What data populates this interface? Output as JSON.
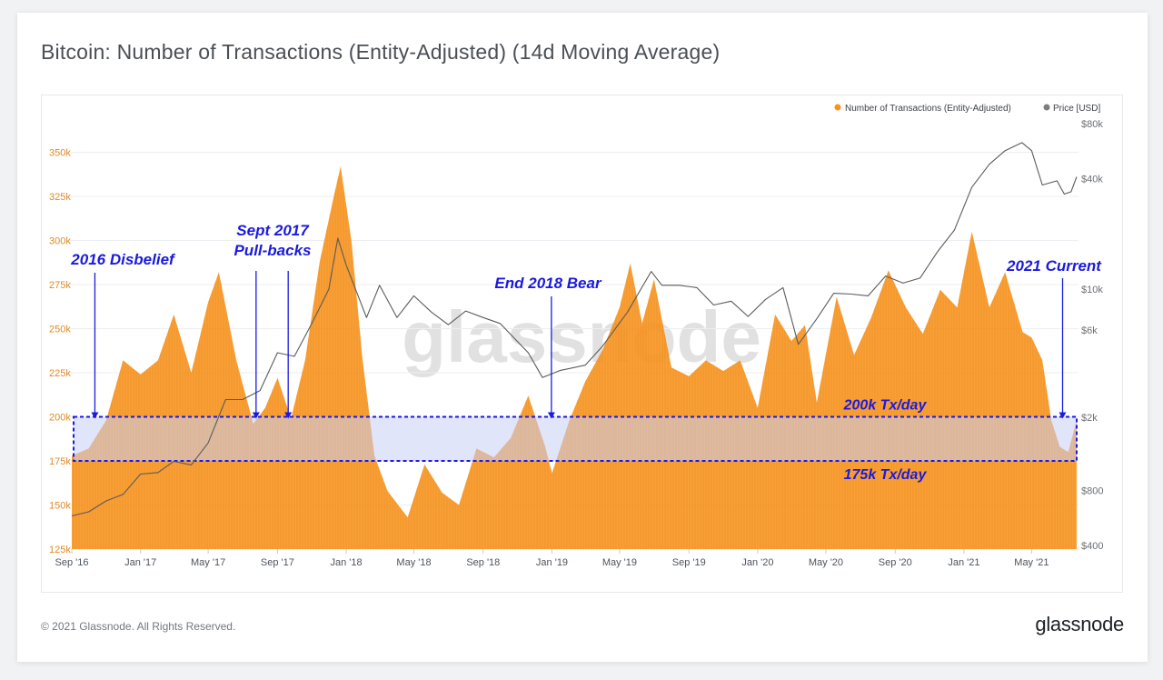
{
  "page_title": "Bitcoin: Number of Transactions (Entity-Adjusted) (14d Moving Average)",
  "footer": {
    "copyright": "© 2021 Glassnode. All Rights Reserved.",
    "brand": "glassnode"
  },
  "watermark": "glassnode",
  "colors": {
    "tx_fill": "#f7931a",
    "price_line": "#5b5b5b",
    "annotation": "#1a1ae0",
    "band": "#c9cff5"
  },
  "chart_data": {
    "type": "area",
    "title": "Bitcoin: Number of Transactions (Entity-Adjusted) (14d Moving Average)",
    "legend": {
      "placement": "top-right",
      "entries": [
        "Number of Transactions (Entity-Adjusted)",
        "Price [USD]"
      ]
    },
    "x_axis": {
      "range": [
        "2016-09-01",
        "2021-07-20"
      ],
      "tick_labels": [
        "Sep '16",
        "Jan '17",
        "May '17",
        "Sep '17",
        "Jan '18",
        "May '18",
        "Sep '18",
        "Jan '19",
        "May '19",
        "Sep '19",
        "Jan '20",
        "May '20",
        "Sep '20",
        "Jan '21",
        "May '21"
      ]
    },
    "y_axis_left": {
      "ylim": [
        125000,
        360000
      ],
      "tick_values": [
        125000,
        150000,
        175000,
        200000,
        225000,
        250000,
        275000,
        300000,
        325000,
        350000
      ],
      "tick_labels": [
        "125k",
        "150k",
        "175k",
        "200k",
        "225k",
        "250k",
        "275k",
        "300k",
        "325k",
        "350k"
      ]
    },
    "y_axis_right": {
      "scale": "log",
      "ylim": [
        400,
        80000
      ],
      "tick_values": [
        400,
        800,
        2000,
        6000,
        10000,
        40000,
        80000
      ],
      "tick_labels": [
        "$400",
        "$800",
        "$2k",
        "$6k",
        "$10k",
        "$40k",
        "$80k"
      ]
    },
    "grid": true,
    "series": [
      {
        "name": "Number of Transactions (Entity-Adjusted)",
        "axis": "left",
        "points": [
          [
            "2016-09-01",
            178000
          ],
          [
            "2016-10-01",
            182000
          ],
          [
            "2016-11-01",
            198000
          ],
          [
            "2016-12-01",
            232000
          ],
          [
            "2017-01-01",
            224000
          ],
          [
            "2017-02-01",
            232000
          ],
          [
            "2017-03-01",
            258000
          ],
          [
            "2017-04-01",
            225000
          ],
          [
            "2017-05-01",
            265000
          ],
          [
            "2017-05-20",
            282000
          ],
          [
            "2017-06-20",
            232000
          ],
          [
            "2017-07-20",
            196000
          ],
          [
            "2017-08-10",
            205000
          ],
          [
            "2017-09-01",
            222000
          ],
          [
            "2017-09-25",
            199000
          ],
          [
            "2017-10-20",
            232000
          ],
          [
            "2017-11-15",
            288000
          ],
          [
            "2017-12-10",
            325000
          ],
          [
            "2017-12-22",
            342000
          ],
          [
            "2018-01-10",
            300000
          ],
          [
            "2018-01-30",
            232000
          ],
          [
            "2018-02-20",
            178000
          ],
          [
            "2018-03-15",
            158000
          ],
          [
            "2018-04-20",
            143000
          ],
          [
            "2018-05-20",
            173000
          ],
          [
            "2018-06-20",
            157000
          ],
          [
            "2018-07-20",
            150000
          ],
          [
            "2018-08-20",
            182000
          ],
          [
            "2018-09-20",
            177000
          ],
          [
            "2018-10-20",
            188000
          ],
          [
            "2018-11-20",
            212000
          ],
          [
            "2018-12-20",
            183000
          ],
          [
            "2019-01-01",
            168000
          ],
          [
            "2019-02-01",
            198000
          ],
          [
            "2019-03-01",
            220000
          ],
          [
            "2019-04-01",
            238000
          ],
          [
            "2019-05-01",
            262000
          ],
          [
            "2019-05-20",
            287000
          ],
          [
            "2019-06-10",
            253000
          ],
          [
            "2019-07-01",
            278000
          ],
          [
            "2019-08-01",
            228000
          ],
          [
            "2019-09-01",
            223000
          ],
          [
            "2019-10-01",
            232000
          ],
          [
            "2019-11-01",
            226000
          ],
          [
            "2019-12-01",
            232000
          ],
          [
            "2020-01-01",
            205000
          ],
          [
            "2020-02-01",
            258000
          ],
          [
            "2020-03-01",
            243000
          ],
          [
            "2020-03-25",
            252000
          ],
          [
            "2020-04-15",
            208000
          ],
          [
            "2020-05-20",
            268000
          ],
          [
            "2020-06-20",
            235000
          ],
          [
            "2020-07-20",
            256000
          ],
          [
            "2020-08-20",
            283000
          ],
          [
            "2020-09-20",
            262000
          ],
          [
            "2020-10-20",
            247000
          ],
          [
            "2020-11-20",
            272000
          ],
          [
            "2020-12-20",
            262000
          ],
          [
            "2021-01-15",
            305000
          ],
          [
            "2021-02-15",
            262000
          ],
          [
            "2021-03-15",
            282000
          ],
          [
            "2021-04-15",
            248000
          ],
          [
            "2021-05-01",
            245000
          ],
          [
            "2021-05-20",
            232000
          ],
          [
            "2021-06-05",
            198000
          ],
          [
            "2021-06-20",
            183000
          ],
          [
            "2021-07-05",
            180000
          ],
          [
            "2021-07-20",
            198000
          ]
        ]
      },
      {
        "name": "Price [USD]",
        "axis": "right",
        "points": [
          [
            "2016-09-01",
            580
          ],
          [
            "2016-10-01",
            610
          ],
          [
            "2016-11-01",
            700
          ],
          [
            "2016-12-01",
            760
          ],
          [
            "2017-01-01",
            980
          ],
          [
            "2017-02-01",
            1000
          ],
          [
            "2017-03-01",
            1150
          ],
          [
            "2017-04-01",
            1100
          ],
          [
            "2017-05-01",
            1450
          ],
          [
            "2017-06-01",
            2500
          ],
          [
            "2017-07-01",
            2500
          ],
          [
            "2017-08-01",
            2800
          ],
          [
            "2017-09-01",
            4500
          ],
          [
            "2017-10-01",
            4300
          ],
          [
            "2017-11-01",
            6500
          ],
          [
            "2017-12-01",
            10000
          ],
          [
            "2017-12-17",
            19000
          ],
          [
            "2018-01-01",
            13500
          ],
          [
            "2018-02-06",
            7000
          ],
          [
            "2018-03-01",
            10500
          ],
          [
            "2018-04-01",
            7000
          ],
          [
            "2018-05-01",
            9200
          ],
          [
            "2018-06-01",
            7500
          ],
          [
            "2018-07-01",
            6400
          ],
          [
            "2018-08-01",
            7600
          ],
          [
            "2018-09-01",
            7000
          ],
          [
            "2018-10-01",
            6500
          ],
          [
            "2018-11-20",
            4500
          ],
          [
            "2018-12-15",
            3300
          ],
          [
            "2019-01-15",
            3600
          ],
          [
            "2019-03-01",
            3850
          ],
          [
            "2019-04-01",
            4900
          ],
          [
            "2019-05-15",
            7500
          ],
          [
            "2019-06-26",
            12500
          ],
          [
            "2019-07-15",
            10500
          ],
          [
            "2019-08-15",
            10500
          ],
          [
            "2019-09-15",
            10200
          ],
          [
            "2019-10-15",
            8200
          ],
          [
            "2019-11-15",
            8600
          ],
          [
            "2019-12-15",
            7100
          ],
          [
            "2020-01-15",
            8800
          ],
          [
            "2020-02-15",
            10200
          ],
          [
            "2020-03-13",
            5000
          ],
          [
            "2020-04-15",
            6900
          ],
          [
            "2020-05-15",
            9500
          ],
          [
            "2020-06-15",
            9400
          ],
          [
            "2020-07-15",
            9200
          ],
          [
            "2020-08-15",
            11800
          ],
          [
            "2020-09-15",
            10800
          ],
          [
            "2020-10-15",
            11500
          ],
          [
            "2020-11-15",
            16000
          ],
          [
            "2020-12-15",
            21000
          ],
          [
            "2021-01-15",
            36000
          ],
          [
            "2021-02-15",
            48000
          ],
          [
            "2021-03-15",
            57000
          ],
          [
            "2021-04-14",
            63000
          ],
          [
            "2021-05-01",
            57000
          ],
          [
            "2021-05-20",
            37000
          ],
          [
            "2021-06-15",
            39000
          ],
          [
            "2021-06-28",
            33000
          ],
          [
            "2021-07-10",
            34000
          ],
          [
            "2021-07-20",
            41000
          ]
        ]
      }
    ],
    "band": {
      "from": 175000,
      "to": 200000,
      "labels": [
        "200k Tx/day",
        "175k Tx/day"
      ]
    },
    "annotations": [
      {
        "text": "2016 Disbelief",
        "date": "2016-10-12",
        "arrow_to": 200000
      },
      {
        "text": "Sept 2017\nPull-backs",
        "dates": [
          "2017-07-25",
          "2017-09-20"
        ],
        "arrow_to": 200000
      },
      {
        "text": "End 2018 Bear",
        "date": "2018-12-31",
        "arrow_to": 200000
      },
      {
        "text": "2021 Current",
        "date": "2021-06-25",
        "arrow_to": 200000
      }
    ]
  }
}
